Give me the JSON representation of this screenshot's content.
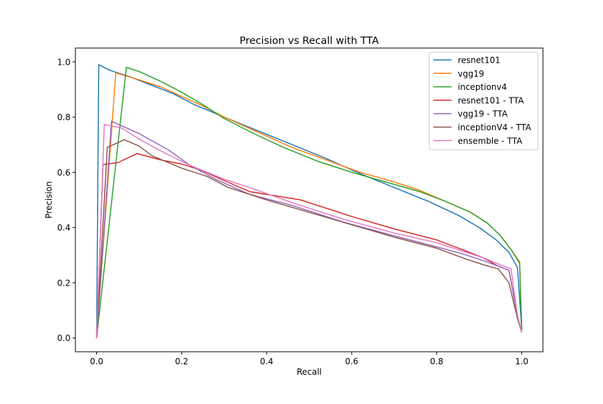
{
  "chart_data": {
    "type": "line",
    "title": "Precision vs Recall with TTA",
    "xlabel": "Recall",
    "ylabel": "Precision",
    "xlim": [
      -0.05,
      1.05
    ],
    "ylim": [
      -0.05,
      1.05
    ],
    "xticks": [
      0.0,
      0.2,
      0.4,
      0.6,
      0.8,
      1.0
    ],
    "yticks": [
      0.0,
      0.2,
      0.4,
      0.6,
      0.8,
      1.0
    ],
    "xtick_labels": [
      "0.0",
      "0.2",
      "0.4",
      "0.6",
      "0.8",
      "1.0"
    ],
    "ytick_labels": [
      "0.0",
      "0.2",
      "0.4",
      "0.6",
      "0.8",
      "1.0"
    ],
    "grid": false,
    "legend_position": "top-right",
    "series": [
      {
        "name": "resnet101",
        "color": "#1f77b4",
        "x": [
          0.0,
          0.005,
          0.03,
          0.08,
          0.13,
          0.18,
          0.23,
          0.3,
          0.38,
          0.46,
          0.54,
          0.62,
          0.7,
          0.78,
          0.85,
          0.9,
          0.94,
          0.97,
          0.99,
          1.0
        ],
        "y": [
          0.0,
          0.99,
          0.97,
          0.945,
          0.915,
          0.885,
          0.845,
          0.8,
          0.75,
          0.7,
          0.65,
          0.595,
          0.545,
          0.495,
          0.445,
          0.4,
          0.355,
          0.31,
          0.255,
          0.03
        ]
      },
      {
        "name": "vgg19",
        "color": "#ff7f0e",
        "x": [
          0.0,
          0.045,
          0.1,
          0.15,
          0.2,
          0.25,
          0.3,
          0.38,
          0.46,
          0.54,
          0.62,
          0.7,
          0.76,
          0.82,
          0.88,
          0.92,
          0.95,
          0.975,
          0.995,
          1.0
        ],
        "y": [
          0.0,
          0.96,
          0.935,
          0.91,
          0.875,
          0.84,
          0.8,
          0.745,
          0.69,
          0.645,
          0.6,
          0.565,
          0.535,
          0.495,
          0.455,
          0.415,
          0.37,
          0.32,
          0.27,
          0.03
        ]
      },
      {
        "name": "inceptionv4",
        "color": "#2ca02c",
        "x": [
          0.0,
          0.07,
          0.1,
          0.15,
          0.2,
          0.25,
          0.3,
          0.37,
          0.44,
          0.52,
          0.6,
          0.68,
          0.76,
          0.82,
          0.88,
          0.92,
          0.95,
          0.975,
          0.995,
          1.0
        ],
        "y": [
          0.0,
          0.98,
          0.965,
          0.93,
          0.89,
          0.845,
          0.795,
          0.74,
          0.69,
          0.64,
          0.6,
          0.565,
          0.53,
          0.495,
          0.455,
          0.415,
          0.37,
          0.32,
          0.275,
          0.03
        ]
      },
      {
        "name": "resnet101 - TTA",
        "color": "#d62728",
        "x": [
          0.0,
          0.015,
          0.05,
          0.095,
          0.15,
          0.2,
          0.25,
          0.3,
          0.36,
          0.48,
          0.6,
          0.7,
          0.8,
          0.86,
          0.91,
          0.945,
          0.97,
          0.99,
          1.0
        ],
        "y": [
          0.0,
          0.628,
          0.635,
          0.668,
          0.645,
          0.63,
          0.605,
          0.57,
          0.53,
          0.5,
          0.44,
          0.395,
          0.355,
          0.32,
          0.29,
          0.26,
          0.245,
          0.08,
          0.02
        ]
      },
      {
        "name": "vgg19 - TTA",
        "color": "#9467bd",
        "x": [
          0.0,
          0.035,
          0.1,
          0.17,
          0.22,
          0.28,
          0.36,
          0.46,
          0.58,
          0.7,
          0.8,
          0.86,
          0.91,
          0.945,
          0.97,
          0.99,
          1.0
        ],
        "y": [
          0.0,
          0.785,
          0.74,
          0.68,
          0.625,
          0.575,
          0.52,
          0.48,
          0.42,
          0.37,
          0.33,
          0.305,
          0.28,
          0.26,
          0.245,
          0.08,
          0.02
        ]
      },
      {
        "name": "inceptionV4 - TTA",
        "color": "#8c564b",
        "x": [
          0.0,
          0.025,
          0.065,
          0.1,
          0.13,
          0.2,
          0.26,
          0.31,
          0.4,
          0.5,
          0.6,
          0.7,
          0.8,
          0.87,
          0.91,
          0.945,
          0.97,
          0.99,
          1.0
        ],
        "y": [
          0.0,
          0.69,
          0.718,
          0.695,
          0.66,
          0.615,
          0.585,
          0.545,
          0.5,
          0.455,
          0.41,
          0.365,
          0.325,
          0.285,
          0.265,
          0.25,
          0.2,
          0.07,
          0.02
        ]
      },
      {
        "name": "ensemble - TTA",
        "color": "#e377c2",
        "x": [
          0.0,
          0.018,
          0.06,
          0.1,
          0.16,
          0.22,
          0.3,
          0.36,
          0.46,
          0.58,
          0.7,
          0.8,
          0.86,
          0.91,
          0.95,
          0.975,
          0.99,
          1.0
        ],
        "y": [
          0.0,
          0.773,
          0.76,
          0.72,
          0.67,
          0.625,
          0.575,
          0.545,
          0.49,
          0.43,
          0.38,
          0.345,
          0.315,
          0.29,
          0.265,
          0.25,
          0.08,
          0.02
        ]
      }
    ]
  }
}
